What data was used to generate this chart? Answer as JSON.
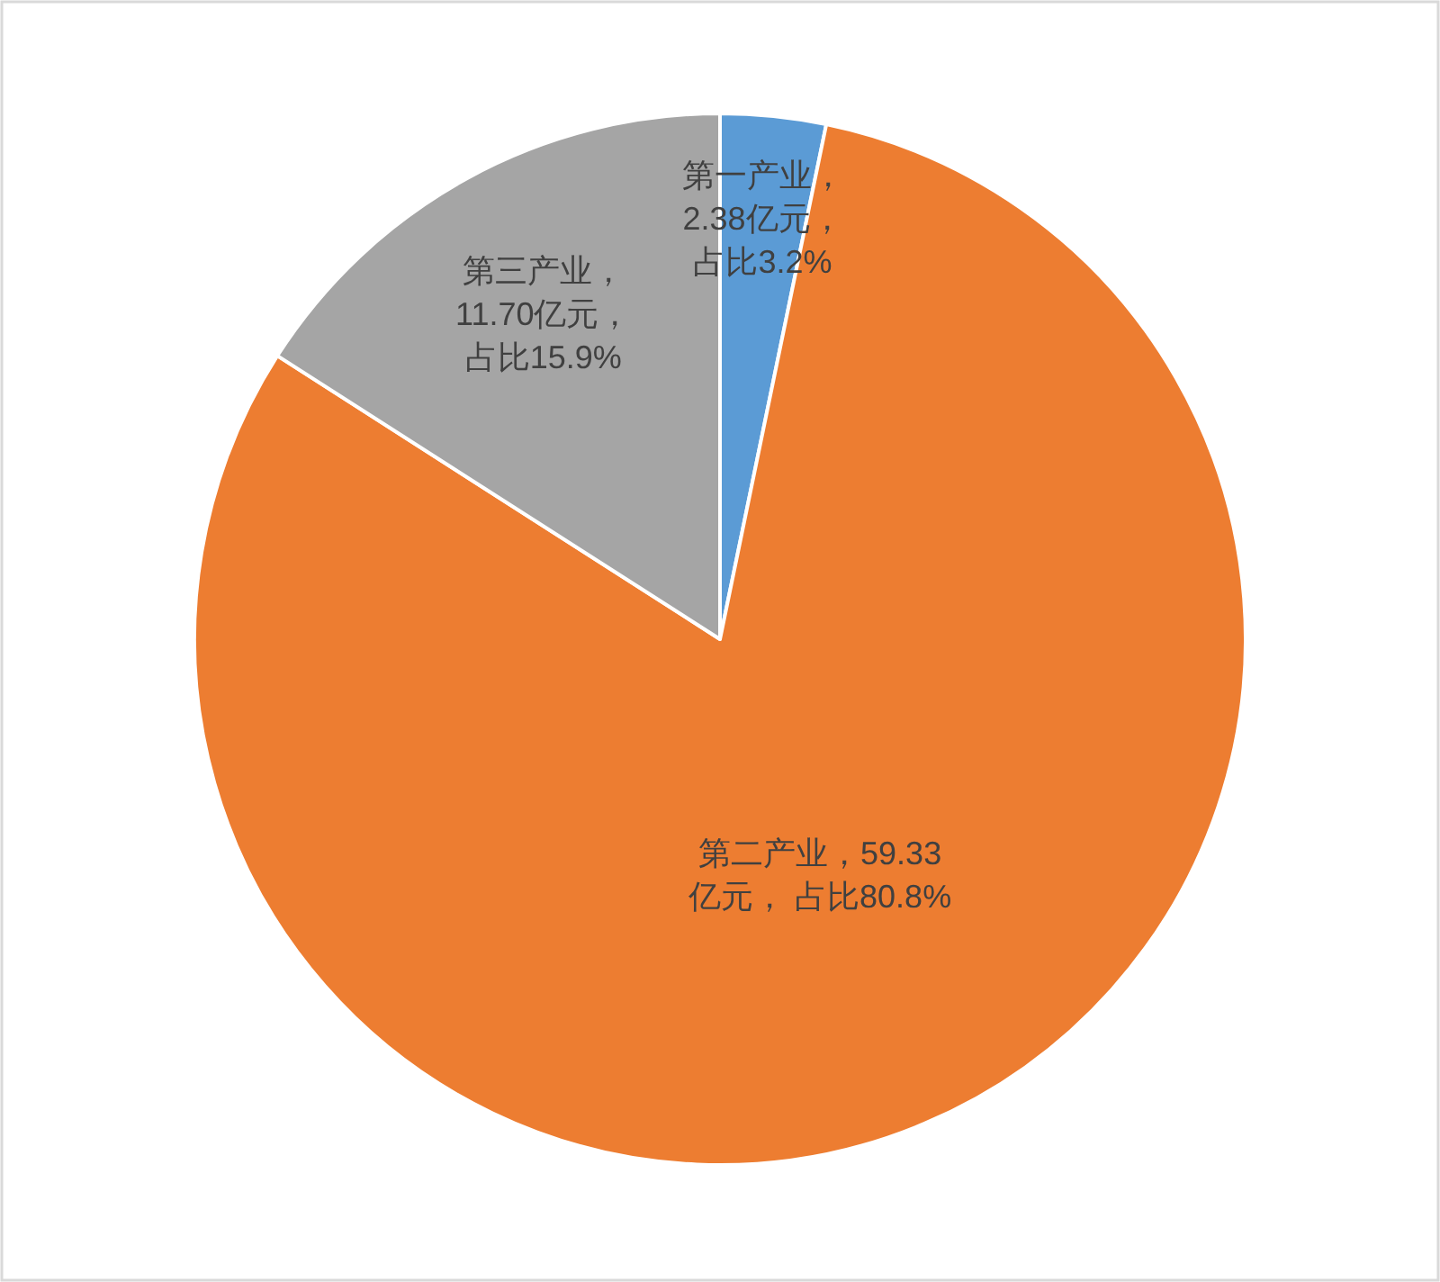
{
  "chart_data": {
    "type": "pie",
    "categories": [
      "第一产业",
      "第二产业",
      "第三产业"
    ],
    "values": [
      2.38,
      59.33,
      11.7
    ],
    "colors": [
      "#5b9bd5",
      "#ed7d31",
      "#a5a5a5"
    ],
    "value_labels": [
      "，2.38亿元，占比3.2%",
      "，59.33亿元， 占比80.8%",
      "，11.70亿元，占比15.9%"
    ]
  }
}
